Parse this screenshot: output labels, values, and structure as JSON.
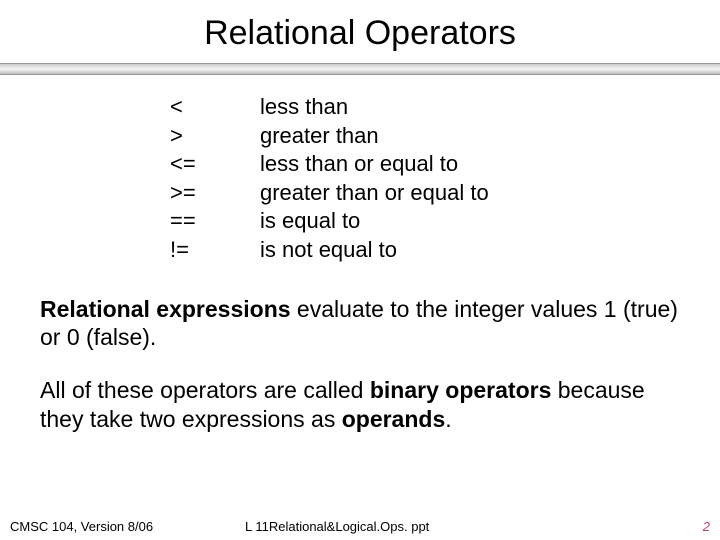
{
  "slide": {
    "title": "Relational Operators",
    "operators": [
      {
        "symbol": "<",
        "desc": "less than"
      },
      {
        "symbol": ">",
        "desc": "greater than"
      },
      {
        "symbol": "<=",
        "desc": "less than or equal to"
      },
      {
        "symbol": ">=",
        "desc": "greater than or equal to"
      },
      {
        "symbol": "==",
        "desc": "is equal to"
      },
      {
        "symbol": "!=",
        "desc": "is not equal to"
      }
    ],
    "para1_bold": "Relational expressions",
    "para1_rest": " evaluate to the integer values 1 (true) or 0 (false).",
    "para2_pre": "All of these operators are called ",
    "para2_bold1": "binary operators",
    "para2_mid": " because they take two expressions as ",
    "para2_bold2": "operands",
    "para2_end": "."
  },
  "footer": {
    "left": "CMSC 104, Version 8/06",
    "center": "L 11Relational&Logical.Ops. ppt",
    "page": "2"
  },
  "style": {
    "background": "#ffffff",
    "text_color": "#000000",
    "title_fontsize": 34,
    "body_fontsize": 22,
    "para_fontsize": 23,
    "footer_fontsize": 13,
    "page_number_color": "#c04070",
    "divider_gradient_top": "#cccccc",
    "divider_gradient_mid": "#f4f4f4",
    "divider_gradient_bot": "#bdbdbd"
  }
}
